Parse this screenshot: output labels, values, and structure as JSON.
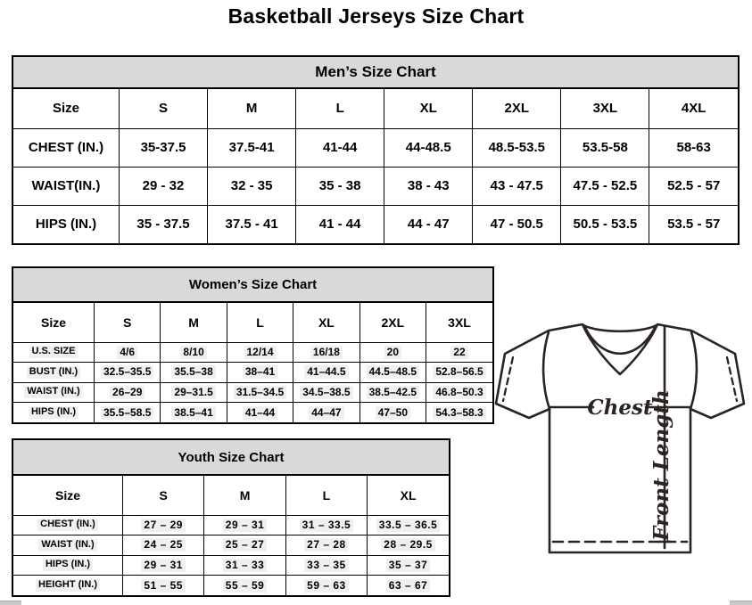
{
  "page_title": "Basketball Jerseys Size Chart",
  "men": {
    "title": "Men’s Size Chart",
    "columns": [
      "Size",
      "S",
      "M",
      "L",
      "XL",
      "2XL",
      "3XL",
      "4XL"
    ],
    "highlight": false,
    "rows": [
      {
        "label": "CHEST (IN.)",
        "values": [
          "35-37.5",
          "37.5-41",
          "41-44",
          "44-48.5",
          "48.5-53.5",
          "53.5-58",
          "58-63"
        ]
      },
      {
        "label": "WAIST(IN.)",
        "values": [
          "29 - 32",
          "32 - 35",
          "35 - 38",
          "38 - 43",
          "43 - 47.5",
          "47.5 - 52.5",
          "52.5 - 57"
        ]
      },
      {
        "label": "HIPS (IN.)",
        "values": [
          "35 - 37.5",
          "37.5 - 41",
          "41 - 44",
          "44 - 47",
          "47 - 50.5",
          "50.5 - 53.5",
          "53.5 - 57"
        ]
      }
    ]
  },
  "women": {
    "title": "Women’s Size Chart",
    "columns": [
      "Size",
      "S",
      "M",
      "L",
      "XL",
      "2XL",
      "3XL"
    ],
    "highlight": true,
    "rows": [
      {
        "label": "U.S. SIZE",
        "values": [
          "4/6",
          "8/10",
          "12/14",
          "16/18",
          "20",
          "22"
        ]
      },
      {
        "label": "BUST (IN.)",
        "values": [
          "32.5–35.5",
          "35.5–38",
          "38–41",
          "41–44.5",
          "44.5–48.5",
          "52.8–56.5"
        ]
      },
      {
        "label": "WAIST (IN.)",
        "values": [
          "26–29",
          "29–31.5",
          "31.5–34.5",
          "34.5–38.5",
          "38.5–42.5",
          "46.8–50.3"
        ]
      },
      {
        "label": "HIPS (IN.)",
        "values": [
          "35.5–58.5",
          "38.5–41",
          "41–44",
          "44–47",
          "47–50",
          "54.3–58.3"
        ]
      }
    ]
  },
  "youth": {
    "title": "Youth Size Chart",
    "columns": [
      "Size",
      "S",
      "M",
      "L",
      "XL"
    ],
    "highlight": true,
    "rows": [
      {
        "label": "CHEST (IN.)",
        "values": [
          "27 – 29",
          "29 – 31",
          "31 – 33.5",
          "33.5 – 36.5"
        ]
      },
      {
        "label": "WAIST (IN.)",
        "values": [
          "24 – 25",
          "25 – 27",
          "27 – 28",
          "28 – 29.5"
        ]
      },
      {
        "label": "HIPS (IN.)",
        "values": [
          "29 – 31",
          "31 – 33",
          "33 – 35",
          "35 – 37"
        ]
      },
      {
        "label": "HEIGHT (IN.)",
        "values": [
          "51 – 55",
          "55 – 59",
          "59 – 63",
          "63 – 67"
        ]
      }
    ]
  },
  "diagram": {
    "chest_label": "Chest",
    "front_length_label": "Front Length"
  },
  "colors": {
    "section_header_bg": "#d9d9d9",
    "table_border": "#000000",
    "diagram_line": "#2a2422",
    "cell_highlight": "#f0f0f0",
    "scrollbar_piece": "#c9c9c9"
  }
}
